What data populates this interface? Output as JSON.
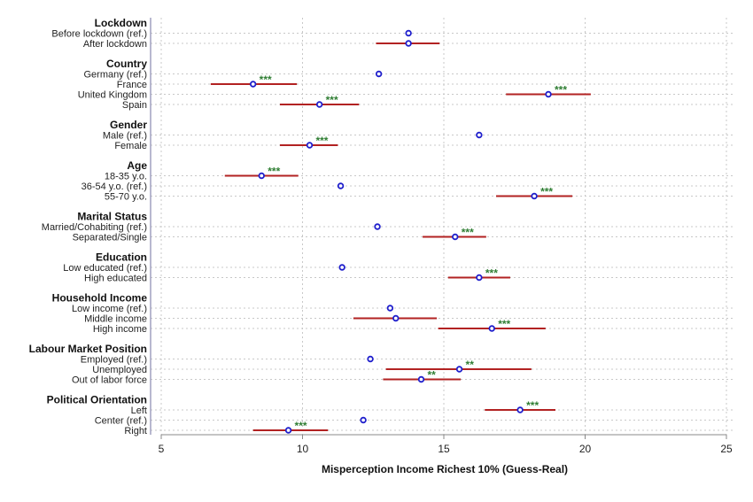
{
  "chart_data": {
    "type": "coefficient-plot",
    "xlabel": "Misperception Income Richest 10% (Guess-Real)",
    "xlim": [
      5,
      25
    ],
    "xticks": [
      5,
      10,
      15,
      20,
      25
    ],
    "grid": true,
    "colors": {
      "ci_line": "#b22222",
      "marker": "#1f1fcc",
      "stars": "#2e7d32",
      "grid": "#c8c8c8",
      "axis": "#a0a0c0"
    },
    "groups": [
      {
        "title": "Lockdown",
        "rows": [
          {
            "label": "Before lockdown (ref.)",
            "est": 13.75
          },
          {
            "label": "After lockdown",
            "est": 13.75,
            "ci": [
              12.6,
              14.85
            ]
          }
        ]
      },
      {
        "title": "Country",
        "rows": [
          {
            "label": "Germany (ref.)",
            "est": 12.7
          },
          {
            "label": "France",
            "est": 8.25,
            "ci": [
              6.75,
              9.8
            ],
            "sig": "***"
          },
          {
            "label": "United Kingdom",
            "est": 18.7,
            "ci": [
              17.2,
              20.2
            ],
            "sig": "***"
          },
          {
            "label": "Spain",
            "est": 10.6,
            "ci": [
              9.2,
              12.0
            ],
            "sig": "***"
          }
        ]
      },
      {
        "title": "Gender",
        "rows": [
          {
            "label": "Male (ref.)",
            "est": 16.25
          },
          {
            "label": "Female",
            "est": 10.25,
            "ci": [
              9.2,
              11.25
            ],
            "sig": "***"
          }
        ]
      },
      {
        "title": "Age",
        "rows": [
          {
            "label": "18-35 y.o.",
            "est": 8.55,
            "ci": [
              7.25,
              9.85
            ],
            "sig": "***"
          },
          {
            "label": "36-54 y.o. (ref.)",
            "est": 11.35
          },
          {
            "label": "55-70 y.o.",
            "est": 18.2,
            "ci": [
              16.85,
              19.55
            ],
            "sig": "***"
          }
        ]
      },
      {
        "title": "Marital Status",
        "rows": [
          {
            "label": "Married/Cohabiting (ref.)",
            "est": 12.65
          },
          {
            "label": "Separated/Single",
            "est": 15.4,
            "ci": [
              14.25,
              16.5
            ],
            "sig": "***"
          }
        ]
      },
      {
        "title": "Education",
        "rows": [
          {
            "label": "Low educated (ref.)",
            "est": 11.4
          },
          {
            "label": "High educated",
            "est": 16.25,
            "ci": [
              15.15,
              17.35
            ],
            "sig": "***"
          }
        ]
      },
      {
        "title": "Household Income",
        "rows": [
          {
            "label": "Low income (ref.)",
            "est": 13.1
          },
          {
            "label": "Middle income",
            "est": 13.3,
            "ci": [
              11.8,
              14.75
            ]
          },
          {
            "label": "High income",
            "est": 16.7,
            "ci": [
              14.8,
              18.6
            ],
            "sig": "***"
          }
        ]
      },
      {
        "title": "Labour Market Position",
        "rows": [
          {
            "label": "Employed (ref.)",
            "est": 12.4
          },
          {
            "label": "Unemployed",
            "est": 15.55,
            "ci": [
              12.95,
              18.1
            ],
            "sig": "**"
          },
          {
            "label": "Out of labor force",
            "est": 14.2,
            "ci": [
              12.85,
              15.6
            ],
            "sig": "**"
          }
        ]
      },
      {
        "title": "Political Orientation",
        "rows": [
          {
            "label": "Left",
            "est": 17.7,
            "ci": [
              16.45,
              18.95
            ],
            "sig": "***"
          },
          {
            "label": "Center (ref.)",
            "est": 12.15
          },
          {
            "label": "Right",
            "est": 9.5,
            "ci": [
              8.25,
              10.9
            ],
            "sig": "***"
          }
        ]
      }
    ]
  }
}
